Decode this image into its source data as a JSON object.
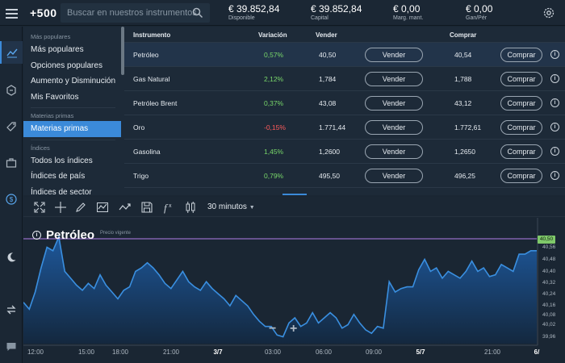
{
  "header": {
    "logo": "+500",
    "search_placeholder": "Buscar en nuestros instrumentos",
    "stats": [
      {
        "value": "€ 39.852,84",
        "label": "Disponible"
      },
      {
        "value": "€ 39.852,84",
        "label": "Capital"
      },
      {
        "value": "€ 0,00",
        "label": "Marg. mant."
      },
      {
        "value": "€ 0,00",
        "label": "Gan/Pér"
      }
    ]
  },
  "rail": {
    "icons": [
      "chart-icon",
      "trade-icon",
      "tag-icon",
      "portfolio-icon",
      "dollar-icon",
      "moon-icon",
      "swap-icon",
      "chat-icon"
    ]
  },
  "menu": {
    "sections": [
      {
        "heading": "Más populares",
        "items": [
          "Más populares",
          "Opciones populares",
          "Aumento y Disminución",
          "Mis Favoritos"
        ]
      },
      {
        "heading": "Materias primas",
        "items": [
          "Materias primas"
        ]
      },
      {
        "heading": "Índices",
        "items": [
          "Todos los índices",
          "Índices de país",
          "Índices de sector"
        ]
      }
    ],
    "active": "Materias primas"
  },
  "table": {
    "columns": {
      "instrument": "Instrumento",
      "change": "Variación",
      "sell": "Vender",
      "buy": "Comprar"
    },
    "sell_button": "Vender",
    "buy_button": "Comprar",
    "info_symbol": "i",
    "rows": [
      {
        "name": "Petróleo",
        "change": "0,57%",
        "sell": "40,50",
        "buy": "40,54",
        "direction": "up"
      },
      {
        "name": "Gas Natural",
        "change": "2,12%",
        "sell": "1,784",
        "buy": "1,788",
        "direction": "up"
      },
      {
        "name": "Petróleo Brent",
        "change": "0,37%",
        "sell": "43,08",
        "buy": "43,12",
        "direction": "up"
      },
      {
        "name": "Oro",
        "change": "-0,15%",
        "sell": "1.771,44",
        "buy": "1.772,61",
        "direction": "down"
      },
      {
        "name": "Gasolina",
        "change": "1,45%",
        "sell": "1,2600",
        "buy": "1,2650",
        "direction": "up"
      },
      {
        "name": "Trigo",
        "change": "0,79%",
        "sell": "495,50",
        "buy": "496,25",
        "direction": "up"
      }
    ]
  },
  "chart_toolbar": {
    "tools": [
      "fullscreen-icon",
      "crosshair-icon",
      "pencil-icon",
      "indicator-icon",
      "trend-icon",
      "save-icon",
      "function-icon",
      "candles-icon"
    ],
    "timeframe": "30 minutos"
  },
  "chart_data": {
    "type": "area",
    "title": "Petróleo",
    "current_price_label": "Precio vigente",
    "current_price": "40,50",
    "x_ticks": [
      "12:00",
      "15:00",
      "18:00",
      "21:00",
      "3/7",
      "03:00",
      "06:00",
      "09:00",
      "5/7",
      "21:00",
      "6/"
    ],
    "bold_ticks": [
      "3/7",
      "5/7",
      "6/"
    ],
    "y_ticks": [
      "40,56",
      "40,48",
      "40,40",
      "40,32",
      "40,24",
      "40,16",
      "40,08",
      "40,02",
      "39,96"
    ],
    "ylim": [
      39.96,
      40.56
    ],
    "values": [
      40.2,
      40.16,
      40.26,
      40.4,
      40.52,
      40.5,
      40.58,
      40.38,
      40.34,
      40.3,
      40.27,
      40.31,
      40.28,
      40.36,
      40.3,
      40.26,
      40.22,
      40.27,
      40.29,
      40.38,
      40.4,
      40.43,
      40.4,
      40.36,
      40.31,
      40.28,
      40.33,
      40.38,
      40.32,
      40.29,
      40.27,
      40.32,
      40.28,
      40.25,
      40.22,
      40.18,
      40.24,
      40.21,
      40.18,
      40.13,
      40.09,
      40.06,
      40.06,
      40.01,
      40.0,
      40.08,
      40.11,
      40.06,
      40.08,
      40.14,
      40.08,
      40.11,
      40.14,
      40.11,
      40.05,
      40.07,
      40.13,
      40.08,
      40.04,
      40.02,
      40.06,
      40.05,
      40.32,
      40.26,
      40.28,
      40.29,
      40.29,
      40.39,
      40.45,
      40.38,
      40.4,
      40.34,
      40.38,
      40.36,
      40.34,
      40.38,
      40.44,
      40.38,
      40.4,
      40.35,
      40.36,
      40.42,
      40.4,
      40.38,
      40.48,
      40.48,
      40.5,
      40.5
    ],
    "zoom_out": "−",
    "zoom_in": "+",
    "colors": {
      "line": "#3a8fe0",
      "area_top": "#1e5aa0",
      "area_bottom": "#13283f",
      "price_line": "#b27de8",
      "price_tag": "#7fc96a"
    }
  }
}
